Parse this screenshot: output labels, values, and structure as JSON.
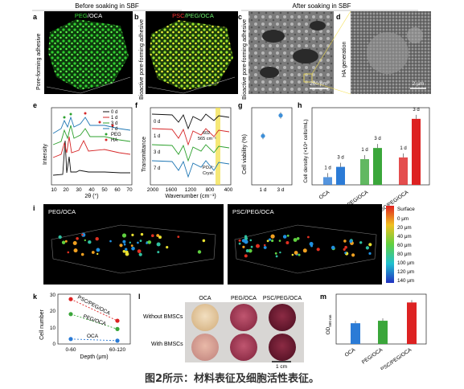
{
  "headings": {
    "before": "Before soaking in SBF",
    "after": "After soaking in SBF"
  },
  "panel_letters": {
    "a": "a",
    "b": "b",
    "c": "c",
    "d": "d",
    "e": "e",
    "f": "f",
    "g": "g",
    "h": "h",
    "i": "i",
    "j": "j",
    "k": "k",
    "l": "l",
    "m": "m"
  },
  "panel_a": {
    "title_peg": "PEG",
    "title_rest": "/OCA",
    "side": "Pore-forming adhesive"
  },
  "panel_b": {
    "title_psc": "PSC",
    "title_rest": "/PEG/OCA",
    "side": "Bioactive pore-forming adhesive"
  },
  "panel_c": {
    "side": "Bioactive pore-forming adhesive",
    "scale": "200 µm"
  },
  "panel_d": {
    "side": "HA generation",
    "scale": "2 µm"
  },
  "panel_e": {
    "ylabel": "Intensity",
    "xlabel": "2θ (°)",
    "xticks": [
      "10",
      "20",
      "30",
      "40",
      "50",
      "60",
      "70"
    ],
    "legend": [
      {
        "label": "0 d",
        "color": "#111111"
      },
      {
        "label": "1 d",
        "color": "#d62728"
      },
      {
        "label": "3 d",
        "color": "#2ca02c"
      },
      {
        "label": "7 d",
        "color": "#1f77b4"
      }
    ],
    "markers": [
      {
        "label": "PEG",
        "color": "#2ca02c"
      },
      {
        "label": "HA",
        "color": "#d62728"
      }
    ]
  },
  "panel_f": {
    "ylabel": "Transmittance",
    "xlabel": "Wavenumber (cm⁻¹)",
    "xticks": [
      "2000",
      "1600",
      "1200",
      "800",
      "400"
    ],
    "curve_labels": [
      "0 d",
      "1 d",
      "3 d",
      "7 d"
    ],
    "annot1": "602",
    "annot2": "565 cm⁻¹",
    "annot3": "PO₄³⁻",
    "annot4": "Cryst."
  },
  "panel_g": {
    "ylabel": "Cell viability (%)",
    "xticks": [
      "1 d",
      "3 d"
    ],
    "chart_data": {
      "type": "scatter",
      "categories": [
        "1 d",
        "3 d"
      ],
      "values": [
        95,
        135
      ],
      "ylim": [
        0,
        150
      ]
    }
  },
  "panel_h": {
    "ylabel": "Cell density (×10⁴ cells/mL)",
    "groups": [
      "OCA",
      "PEG/OCA",
      "PSC/PEG/OCA"
    ],
    "day_labels": [
      "1 d",
      "3 d"
    ],
    "chart_data": {
      "type": "bar",
      "categories": [
        "OCA",
        "PEG/OCA",
        "PSC/PEG/OCA"
      ],
      "series": [
        {
          "name": "1 d",
          "values": [
            0.9,
            3.0,
            3.2
          ]
        },
        {
          "name": "3 d",
          "values": [
            2.1,
            4.3,
            7.7
          ]
        }
      ],
      "ylim": [
        0,
        9
      ],
      "colors": [
        "#2b7bd6",
        "#3aa63a",
        "#dd2222"
      ]
    }
  },
  "panel_i": {
    "title": "PEG/OCA"
  },
  "panel_j": {
    "title": "PSC/PEG/OCA",
    "colorbar": [
      "Surface",
      "0 μm",
      "20 μm",
      "40 μm",
      "60 μm",
      "80 μm",
      "100 μm",
      "120 μm",
      "140 μm"
    ]
  },
  "panel_k": {
    "ylabel": "Cell number",
    "xlabel": "Depth (μm)",
    "xticks": [
      "0-60",
      "60-120"
    ],
    "yticks": [
      "0",
      "10",
      "20",
      "30"
    ],
    "series_labels": [
      "PSC/PEG/OCA",
      "PEG/OCA",
      "OCA"
    ],
    "chart_data": {
      "type": "line",
      "x": [
        "0-60",
        "60-120"
      ],
      "series": [
        {
          "name": "PSC/PEG/OCA",
          "values": [
            27,
            14
          ]
        },
        {
          "name": "PEG/OCA",
          "values": [
            18,
            9
          ]
        },
        {
          "name": "OCA",
          "values": [
            3,
            2
          ]
        }
      ],
      "ylim": [
        0,
        30
      ]
    }
  },
  "panel_l": {
    "cols": [
      "OCA",
      "PEG/OCA",
      "PSC/PEG/OCA"
    ],
    "rows": [
      "Without BMSCs",
      "With BMSCs"
    ],
    "scale": "1 cm"
  },
  "panel_m": {
    "ylabel": "OD",
    "ylabel_sub": "560 nm",
    "chart_data": {
      "type": "bar",
      "categories": [
        "OCA",
        "PEG/OCA",
        "PSC/PEG/OCA"
      ],
      "values": [
        0.05,
        0.056,
        0.1
      ],
      "ylim": [
        0,
        0.12
      ],
      "colors": [
        "#2b7bd6",
        "#3aa63a",
        "#dd2222"
      ]
    }
  },
  "caption": "图2所示：材料表征及细胞活性表征。"
}
